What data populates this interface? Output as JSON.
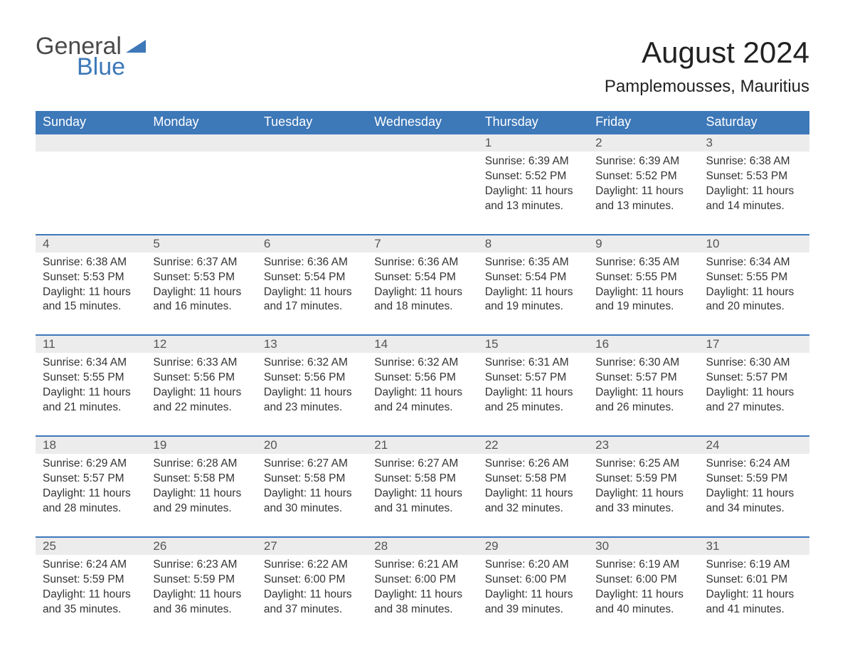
{
  "logo": {
    "text1": "General",
    "text2": "Blue",
    "accent_color": "#3d78b8",
    "text_color": "#4a4a4a"
  },
  "title": "August 2024",
  "location": "Pamplemousses, Mauritius",
  "colors": {
    "header_bg": "#3d78b8",
    "header_fg": "#ffffff",
    "daynum_bg": "#ececec",
    "border": "#3d78b8"
  },
  "day_names": [
    "Sunday",
    "Monday",
    "Tuesday",
    "Wednesday",
    "Thursday",
    "Friday",
    "Saturday"
  ],
  "weeks": [
    [
      null,
      null,
      null,
      null,
      {
        "n": "1",
        "sr": "6:39 AM",
        "ss": "5:52 PM",
        "dl": "11 hours and 13 minutes."
      },
      {
        "n": "2",
        "sr": "6:39 AM",
        "ss": "5:52 PM",
        "dl": "11 hours and 13 minutes."
      },
      {
        "n": "3",
        "sr": "6:38 AM",
        "ss": "5:53 PM",
        "dl": "11 hours and 14 minutes."
      }
    ],
    [
      {
        "n": "4",
        "sr": "6:38 AM",
        "ss": "5:53 PM",
        "dl": "11 hours and 15 minutes."
      },
      {
        "n": "5",
        "sr": "6:37 AM",
        "ss": "5:53 PM",
        "dl": "11 hours and 16 minutes."
      },
      {
        "n": "6",
        "sr": "6:36 AM",
        "ss": "5:54 PM",
        "dl": "11 hours and 17 minutes."
      },
      {
        "n": "7",
        "sr": "6:36 AM",
        "ss": "5:54 PM",
        "dl": "11 hours and 18 minutes."
      },
      {
        "n": "8",
        "sr": "6:35 AM",
        "ss": "5:54 PM",
        "dl": "11 hours and 19 minutes."
      },
      {
        "n": "9",
        "sr": "6:35 AM",
        "ss": "5:55 PM",
        "dl": "11 hours and 19 minutes."
      },
      {
        "n": "10",
        "sr": "6:34 AM",
        "ss": "5:55 PM",
        "dl": "11 hours and 20 minutes."
      }
    ],
    [
      {
        "n": "11",
        "sr": "6:34 AM",
        "ss": "5:55 PM",
        "dl": "11 hours and 21 minutes."
      },
      {
        "n": "12",
        "sr": "6:33 AM",
        "ss": "5:56 PM",
        "dl": "11 hours and 22 minutes."
      },
      {
        "n": "13",
        "sr": "6:32 AM",
        "ss": "5:56 PM",
        "dl": "11 hours and 23 minutes."
      },
      {
        "n": "14",
        "sr": "6:32 AM",
        "ss": "5:56 PM",
        "dl": "11 hours and 24 minutes."
      },
      {
        "n": "15",
        "sr": "6:31 AM",
        "ss": "5:57 PM",
        "dl": "11 hours and 25 minutes."
      },
      {
        "n": "16",
        "sr": "6:30 AM",
        "ss": "5:57 PM",
        "dl": "11 hours and 26 minutes."
      },
      {
        "n": "17",
        "sr": "6:30 AM",
        "ss": "5:57 PM",
        "dl": "11 hours and 27 minutes."
      }
    ],
    [
      {
        "n": "18",
        "sr": "6:29 AM",
        "ss": "5:57 PM",
        "dl": "11 hours and 28 minutes."
      },
      {
        "n": "19",
        "sr": "6:28 AM",
        "ss": "5:58 PM",
        "dl": "11 hours and 29 minutes."
      },
      {
        "n": "20",
        "sr": "6:27 AM",
        "ss": "5:58 PM",
        "dl": "11 hours and 30 minutes."
      },
      {
        "n": "21",
        "sr": "6:27 AM",
        "ss": "5:58 PM",
        "dl": "11 hours and 31 minutes."
      },
      {
        "n": "22",
        "sr": "6:26 AM",
        "ss": "5:58 PM",
        "dl": "11 hours and 32 minutes."
      },
      {
        "n": "23",
        "sr": "6:25 AM",
        "ss": "5:59 PM",
        "dl": "11 hours and 33 minutes."
      },
      {
        "n": "24",
        "sr": "6:24 AM",
        "ss": "5:59 PM",
        "dl": "11 hours and 34 minutes."
      }
    ],
    [
      {
        "n": "25",
        "sr": "6:24 AM",
        "ss": "5:59 PM",
        "dl": "11 hours and 35 minutes."
      },
      {
        "n": "26",
        "sr": "6:23 AM",
        "ss": "5:59 PM",
        "dl": "11 hours and 36 minutes."
      },
      {
        "n": "27",
        "sr": "6:22 AM",
        "ss": "6:00 PM",
        "dl": "11 hours and 37 minutes."
      },
      {
        "n": "28",
        "sr": "6:21 AM",
        "ss": "6:00 PM",
        "dl": "11 hours and 38 minutes."
      },
      {
        "n": "29",
        "sr": "6:20 AM",
        "ss": "6:00 PM",
        "dl": "11 hours and 39 minutes."
      },
      {
        "n": "30",
        "sr": "6:19 AM",
        "ss": "6:00 PM",
        "dl": "11 hours and 40 minutes."
      },
      {
        "n": "31",
        "sr": "6:19 AM",
        "ss": "6:01 PM",
        "dl": "11 hours and 41 minutes."
      }
    ]
  ],
  "labels": {
    "sunrise": "Sunrise:",
    "sunset": "Sunset:",
    "daylight": "Daylight:"
  }
}
